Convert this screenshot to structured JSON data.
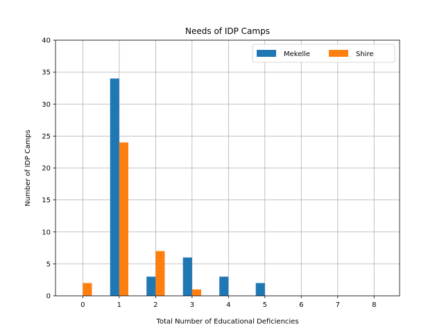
{
  "chart_data": {
    "type": "bar",
    "title": "Needs of IDP Camps",
    "xlabel": "Total Number of Educational Deficiencies",
    "ylabel": "Number of IDP Camps",
    "categories": [
      "0",
      "1",
      "2",
      "3",
      "4",
      "5",
      "6",
      "7",
      "8"
    ],
    "series": [
      {
        "name": "Mekelle",
        "color": "#1f77b4",
        "values": [
          0,
          34,
          3,
          6,
          3,
          2,
          0,
          0,
          0
        ]
      },
      {
        "name": "Shire",
        "color": "#ff7f0e",
        "values": [
          2,
          24,
          7,
          1,
          0,
          0,
          0,
          0,
          0
        ]
      }
    ],
    "xlim": [
      -0.75,
      8.7
    ],
    "ylim": [
      0,
      40
    ],
    "yticks": [
      0,
      5,
      10,
      15,
      20,
      25,
      30,
      35,
      40
    ],
    "grid": true,
    "legend_position": "top-right",
    "legend_columns": 2
  }
}
